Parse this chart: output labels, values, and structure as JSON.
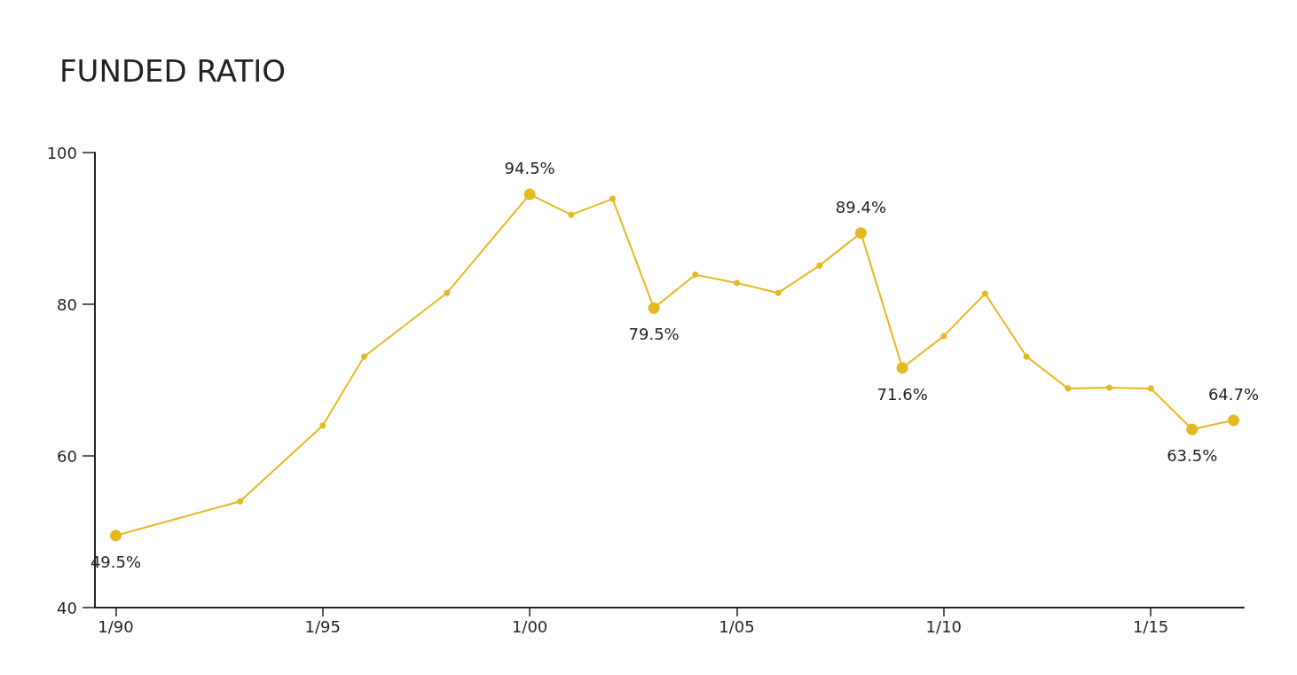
{
  "chart_data": {
    "type": "line",
    "title": "FUNDED RATIO",
    "x": [
      "1990-01",
      "1993-01",
      "1995-01",
      "1996-01",
      "1998-01",
      "2000-01",
      "2001-01",
      "2002-01",
      "2003-01",
      "2004-01",
      "2005-01",
      "2006-01",
      "2007-01",
      "2008-01",
      "2009-01",
      "2010-01",
      "2011-01",
      "2012-01",
      "2013-01",
      "2014-01",
      "2015-01",
      "2016-01",
      "2017-01"
    ],
    "series": [
      {
        "color": "#e6b820",
        "values": [
          49.5,
          54.0,
          64.0,
          73.1,
          81.5,
          94.5,
          91.8,
          93.9,
          79.5,
          83.9,
          82.8,
          81.5,
          85.1,
          89.4,
          71.6,
          75.8,
          81.4,
          73.1,
          68.9,
          69.0,
          68.9,
          63.5,
          64.7
        ],
        "value_labels": [
          "49.5%",
          null,
          null,
          null,
          null,
          "94.5%",
          null,
          null,
          "79.5%",
          null,
          null,
          null,
          null,
          "89.4%",
          "71.6%",
          null,
          null,
          null,
          null,
          null,
          null,
          "63.5%",
          "64.7%"
        ]
      }
    ],
    "xlim": [
      "1989-07",
      "2017-04"
    ],
    "xticks": [
      {
        "value": "1990-01",
        "label": "1/90"
      },
      {
        "value": "1995-01",
        "label": "1/95"
      },
      {
        "value": "2000-01",
        "label": "1/00"
      },
      {
        "value": "2005-01",
        "label": "1/05"
      },
      {
        "value": "2010-01",
        "label": "1/10"
      },
      {
        "value": "2015-01",
        "label": "1/15"
      }
    ],
    "ylim": [
      40,
      100
    ],
    "yticks": [
      40,
      60,
      80,
      100
    ],
    "grid": false,
    "marker": "circle",
    "line_style": "solid"
  }
}
